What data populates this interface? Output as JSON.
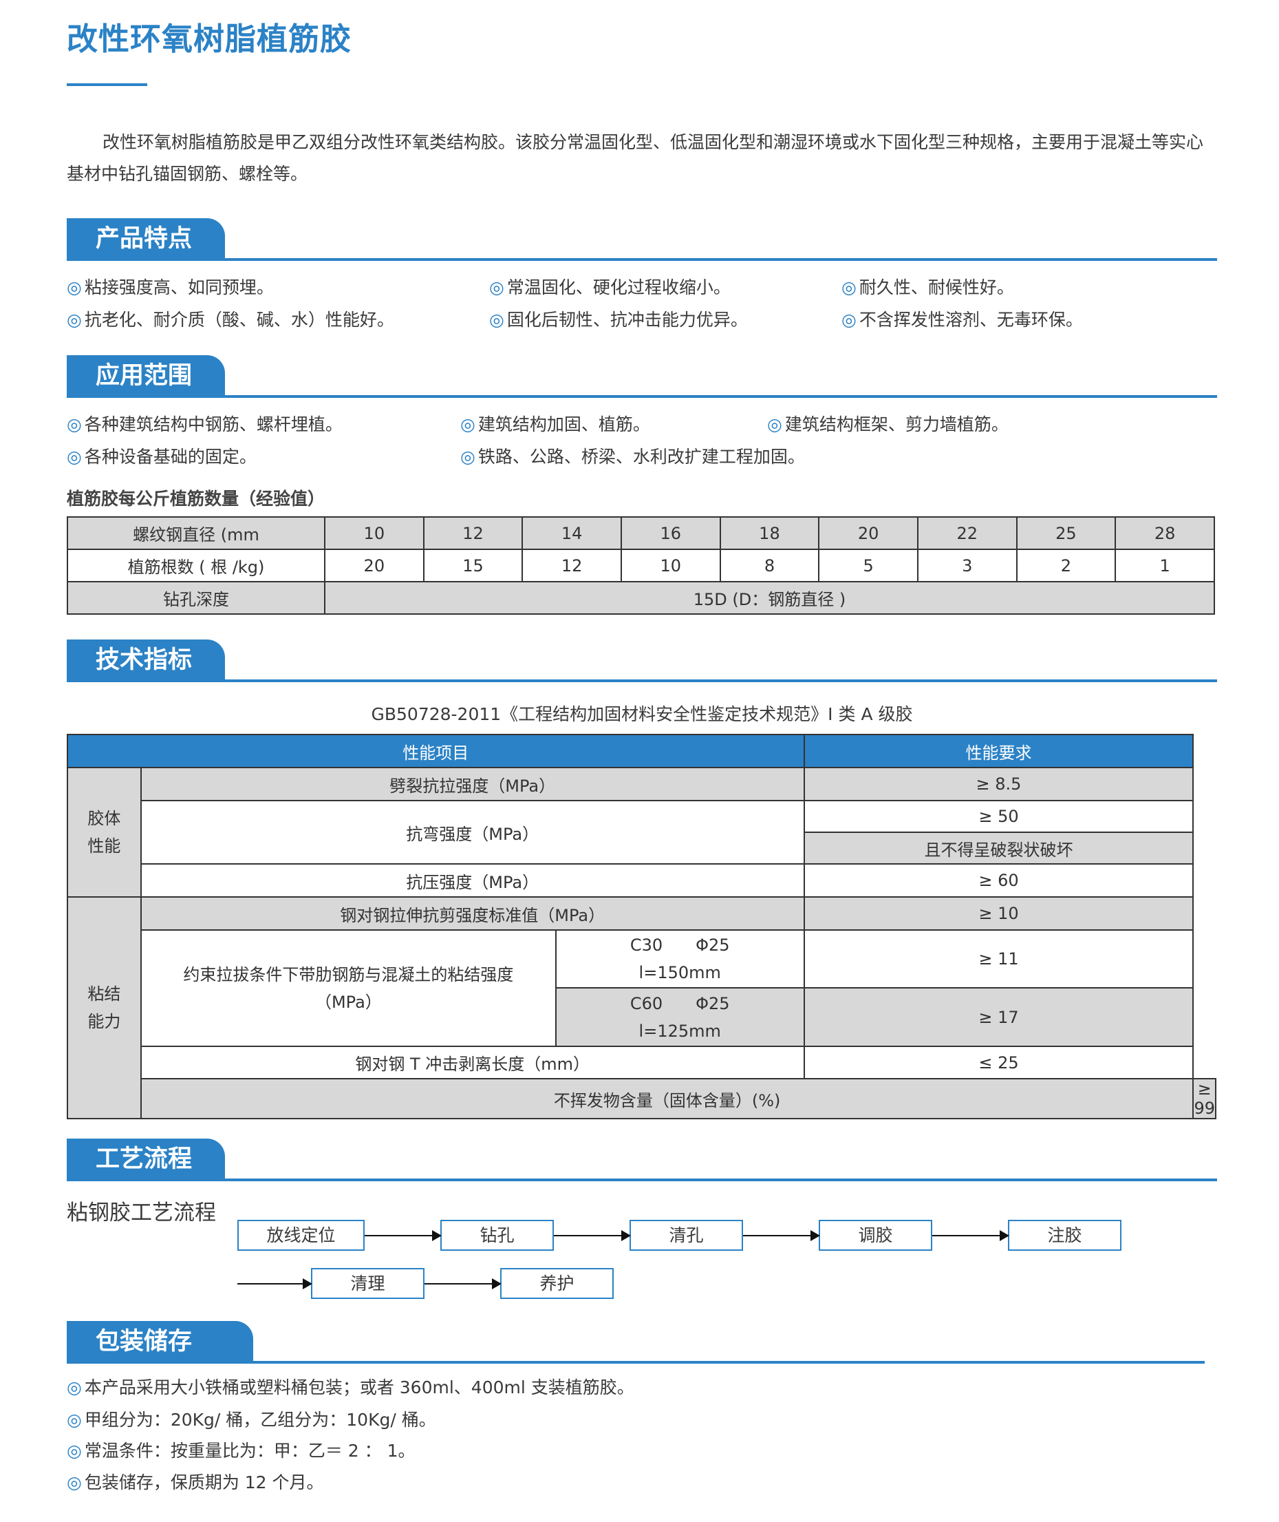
{
  "title": "改性环氧树脂植筋胶",
  "intro": "改性环氧树脂植筋胶是甲乙双组分改性环氧类结构胶。该胶分常温固化型、低温固化型和潮湿环境或水下固化型三种规格，主要用于混凝土等实心基材中钻孔锚固钢筋、螺栓等。",
  "bullet": "◎",
  "colors": {
    "accent": "#2b82c6",
    "cell_gray": "#d8d8d8"
  },
  "features": {
    "heading": "产品特点",
    "items": [
      "粘接强度高、如同预埋。",
      "常温固化、硬化过程收缩小。",
      "耐久性、耐候性好。",
      "抗老化、耐介质（酸、碱、水）性能好。",
      "固化后韧性、抗冲击能力优异。",
      "不含挥发性溶剂、无毒环保。"
    ]
  },
  "applications": {
    "heading": "应用范围",
    "items": [
      "各种建筑结构中钢筋、螺杆埋植。",
      "建筑结构加固、植筋。",
      "建筑结构框架、剪力墙植筋。",
      "各种设备基础的固定。",
      "铁路、公路、桥梁、水利改扩建工程加固。"
    ]
  },
  "rebar_table": {
    "caption": "植筋胶每公斤植筋数量（经验值）",
    "row_labels": [
      "螺纹钢直径 (mm",
      "植筋根数 ( 根 /kg)",
      "钻孔深度"
    ],
    "diameters": [
      "10",
      "12",
      "14",
      "16",
      "18",
      "20",
      "22",
      "25",
      "28"
    ],
    "counts": [
      "20",
      "15",
      "12",
      "10",
      "8",
      "5",
      "3",
      "2",
      "1"
    ],
    "depth": "15D (D：钢筋直径 )"
  },
  "tech": {
    "heading": "技术指标",
    "standard": "GB50728-2011《工程结构加固材料安全性鉴定技术规范》I 类 A 级胶",
    "header": [
      "性能项目",
      "性能要求"
    ],
    "group1": "胶体\n性能",
    "group2": "粘结\n能力",
    "r1": [
      "劈裂抗拉强度（MPa）",
      "≥ 8.5"
    ],
    "r2": [
      "抗弯强度（MPa）",
      "≥ 50",
      "且不得呈破裂状破坏"
    ],
    "r3": [
      "抗压强度（MPa）",
      "≥ 60"
    ],
    "r4": [
      "钢对钢拉伸抗剪强度标准值（MPa）",
      "≥ 10"
    ],
    "r5": [
      "约束拉拔条件下带肋钢筋与混凝土的粘结强度（MPa）",
      "C30　　Φ25\nl=150mm",
      "≥ 11",
      "C60　　Φ25\nl=125mm",
      "≥ 17"
    ],
    "r7": [
      "钢对钢 T 冲击剥离长度（mm）",
      "≤ 25"
    ],
    "r8": [
      "不挥发物含量（固体含量）(%)",
      "≥ 99"
    ]
  },
  "process": {
    "heading": "工艺流程",
    "subtitle": "粘钢胶工艺流程",
    "steps": [
      "放线定位",
      "钻孔",
      "清孔",
      "调胶",
      "注胶",
      "清理",
      "养护"
    ]
  },
  "packaging": {
    "heading": "包装储存",
    "items": [
      "本产品采用大小铁桶或塑料桶包装；或者 360ml、400ml 支装植筋胶。",
      "甲组分为：20Kg/ 桶，乙组分为：10Kg/ 桶。",
      "常温条件：按重量比为：甲：乙＝ 2 ： 1。",
      "包装储存，保质期为 12 个月。"
    ]
  }
}
